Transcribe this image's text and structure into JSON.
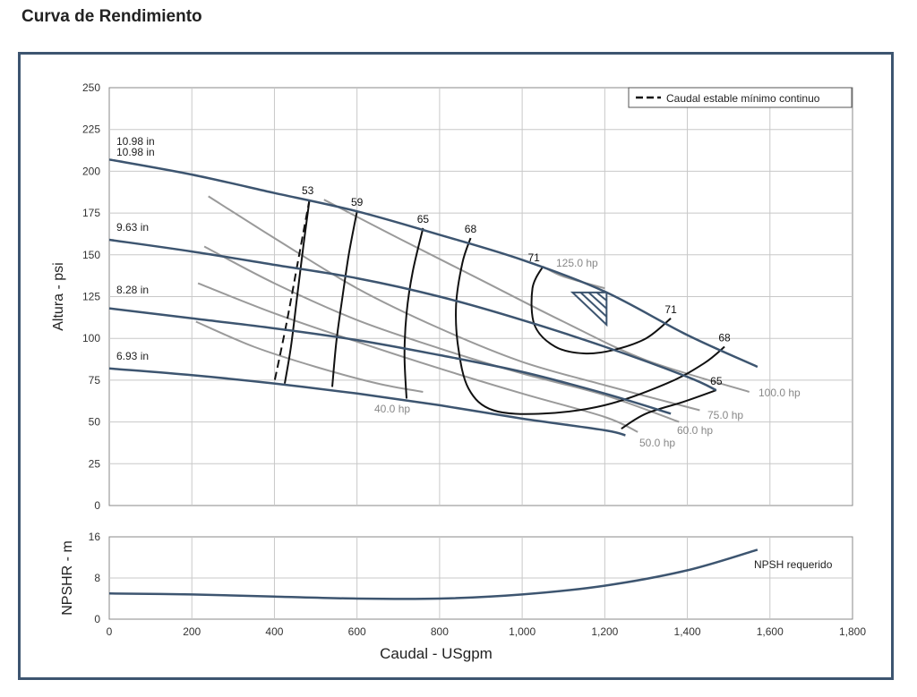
{
  "page_title": "Curva de Rendimiento",
  "colors": {
    "frame": "#3d5570",
    "head_curve": "#3d5570",
    "efficiency": "#111111",
    "power": "#9a9a9a",
    "grid": "#c8c8c8"
  },
  "chart_data": [
    {
      "type": "line",
      "name": "head",
      "xlabel": "",
      "ylabel": "Altura - psi",
      "xlim": [
        0,
        1800
      ],
      "ylim": [
        0,
        250
      ],
      "x_ticks": [
        "0",
        "200",
        "400",
        "600",
        "800",
        "1,000",
        "1,200",
        "1,400",
        "1,600",
        "1,800"
      ],
      "y_ticks": [
        "0",
        "25",
        "50",
        "75",
        "100",
        "125",
        "150",
        "175",
        "200",
        "225",
        "250"
      ],
      "grid": true,
      "legend": {
        "position": "top-right",
        "entries": [
          "Caudal estable mínimo continuo"
        ]
      },
      "impeller_labels": [
        "10.98 in",
        "10.98 in",
        "9.63 in",
        "8.28 in",
        "6.93 in"
      ],
      "head_curves": [
        {
          "label": "10.98 in",
          "points": [
            [
              0,
              207
            ],
            [
              200,
              198
            ],
            [
              400,
              187
            ],
            [
              600,
              176
            ],
            [
              800,
              162
            ],
            [
              1000,
              147
            ],
            [
              1200,
              128
            ],
            [
              1400,
              102
            ],
            [
              1570,
              83
            ]
          ]
        },
        {
          "label": "9.63 in",
          "points": [
            [
              0,
              159
            ],
            [
              200,
              152
            ],
            [
              400,
              144
            ],
            [
              600,
              136
            ],
            [
              800,
              125
            ],
            [
              1000,
              111
            ],
            [
              1200,
              95
            ],
            [
              1400,
              77
            ],
            [
              1470,
              69
            ]
          ]
        },
        {
          "label": "8.28 in",
          "points": [
            [
              0,
              118
            ],
            [
              200,
              112
            ],
            [
              400,
              106
            ],
            [
              600,
              99
            ],
            [
              800,
              90
            ],
            [
              1000,
              80
            ],
            [
              1200,
              67
            ],
            [
              1360,
              55
            ]
          ]
        },
        {
          "label": "6.93 in",
          "points": [
            [
              0,
              82
            ],
            [
              200,
              78
            ],
            [
              400,
              73
            ],
            [
              600,
              67
            ],
            [
              800,
              60
            ],
            [
              1000,
              52
            ],
            [
              1200,
              45
            ],
            [
              1250,
              42
            ]
          ]
        }
      ],
      "efficiency_curves": [
        {
          "label": "53",
          "points": [
            [
              485,
              183
            ],
            [
              470,
              155
            ],
            [
              455,
              125
            ],
            [
              440,
              95
            ],
            [
              425,
              73
            ]
          ]
        },
        {
          "label": "59",
          "points": [
            [
              600,
              176
            ],
            [
              580,
              150
            ],
            [
              565,
              125
            ],
            [
              550,
              98
            ],
            [
              540,
              71
            ]
          ]
        },
        {
          "label": "65",
          "points": [
            [
              760,
              166
            ],
            [
              735,
              140
            ],
            [
              720,
              115
            ],
            [
              715,
              90
            ],
            [
              720,
              64
            ]
          ]
        },
        {
          "label": "68",
          "points": [
            [
              875,
              160
            ],
            [
              855,
              145
            ],
            [
              840,
              120
            ],
            [
              845,
              95
            ],
            [
              870,
              70
            ],
            [
              930,
              57
            ],
            [
              1050,
              55
            ],
            [
              1200,
              60
            ],
            [
              1350,
              73
            ],
            [
              1440,
              85
            ],
            [
              1490,
              95
            ]
          ]
        },
        {
          "label": "71",
          "points": [
            [
              1050,
              143
            ],
            [
              1025,
              130
            ],
            [
              1030,
              108
            ],
            [
              1080,
              95
            ],
            [
              1150,
              91
            ],
            [
              1220,
              93
            ],
            [
              1300,
              100
            ],
            [
              1360,
              112
            ]
          ]
        },
        {
          "label": "65",
          "points": [
            [
              1470,
              69
            ],
            [
              1390,
              62
            ],
            [
              1300,
              55
            ],
            [
              1240,
              46
            ]
          ]
        }
      ],
      "efficiency_label_positions": [
        [
          485,
          183
        ],
        [
          600,
          176
        ],
        [
          760,
          166
        ],
        [
          875,
          160
        ],
        [
          1050,
          143
        ],
        [
          1360,
          112
        ],
        [
          1490,
          95
        ],
        [
          1470,
          69
        ]
      ],
      "efficiency_labels": [
        "53",
        "59",
        "65",
        "68",
        "71",
        "71",
        "68",
        "65"
      ],
      "power_curves": [
        {
          "label": "125.0 hp",
          "points": [
            [
              1050,
              143
            ],
            [
              1100,
              137
            ],
            [
              1200,
              130
            ]
          ]
        },
        {
          "label": "100.0 hp",
          "points": [
            [
              520,
              183
            ],
            [
              700,
              160
            ],
            [
              900,
              135
            ],
            [
              1100,
              110
            ],
            [
              1300,
              87
            ],
            [
              1550,
              68
            ]
          ]
        },
        {
          "label": "75.0 hp",
          "points": [
            [
              240,
              185
            ],
            [
              400,
              160
            ],
            [
              600,
              130
            ],
            [
              800,
              106
            ],
            [
              1000,
              86
            ],
            [
              1200,
              72
            ],
            [
              1430,
              57
            ]
          ]
        },
        {
          "label": "60.0 hp",
          "points": [
            [
              230,
              155
            ],
            [
              400,
              133
            ],
            [
              600,
              111
            ],
            [
              800,
              94
            ],
            [
              1000,
              79
            ],
            [
              1200,
              66
            ],
            [
              1380,
              50
            ]
          ]
        },
        {
          "label": "50.0 hp",
          "points": [
            [
              215,
              133
            ],
            [
              400,
              115
            ],
            [
              600,
              98
            ],
            [
              800,
              82
            ],
            [
              1000,
              67
            ],
            [
              1200,
              53
            ],
            [
              1280,
              44
            ]
          ]
        },
        {
          "label": "40.0 hp",
          "points": [
            [
              210,
              110
            ],
            [
              350,
              95
            ],
            [
              500,
              83
            ],
            [
              650,
              73
            ],
            [
              760,
              68
            ]
          ]
        }
      ],
      "power_labels": [
        "125.0 hp",
        "100.0 hp",
        "75.0 hp",
        "60.0 hp",
        "50.0 hp",
        "40.0 hp"
      ],
      "min_continuous_flow": {
        "points": [
          [
            485,
            183
          ],
          [
            460,
            150
          ],
          [
            430,
            110
          ],
          [
            400,
            74
          ]
        ]
      },
      "bep_marker": {
        "x": 1200,
        "y": 128
      }
    },
    {
      "type": "line",
      "name": "npsh",
      "xlabel": "Caudal - USgpm",
      "ylabel": "NPSHR - m",
      "xlim": [
        0,
        1800
      ],
      "ylim": [
        0,
        16
      ],
      "x_ticks": [
        "0",
        "200",
        "400",
        "600",
        "800",
        "1,000",
        "1,200",
        "1,400",
        "1,600",
        "1,800"
      ],
      "y_ticks": [
        "0",
        "8",
        "16"
      ],
      "grid": true,
      "series": [
        {
          "name": "NPSH requerido",
          "points": [
            [
              0,
              5.0
            ],
            [
              200,
              4.8
            ],
            [
              400,
              4.4
            ],
            [
              600,
              4.0
            ],
            [
              800,
              4.0
            ],
            [
              1000,
              4.8
            ],
            [
              1200,
              6.5
            ],
            [
              1400,
              9.5
            ],
            [
              1570,
              13.5
            ]
          ]
        }
      ]
    }
  ]
}
